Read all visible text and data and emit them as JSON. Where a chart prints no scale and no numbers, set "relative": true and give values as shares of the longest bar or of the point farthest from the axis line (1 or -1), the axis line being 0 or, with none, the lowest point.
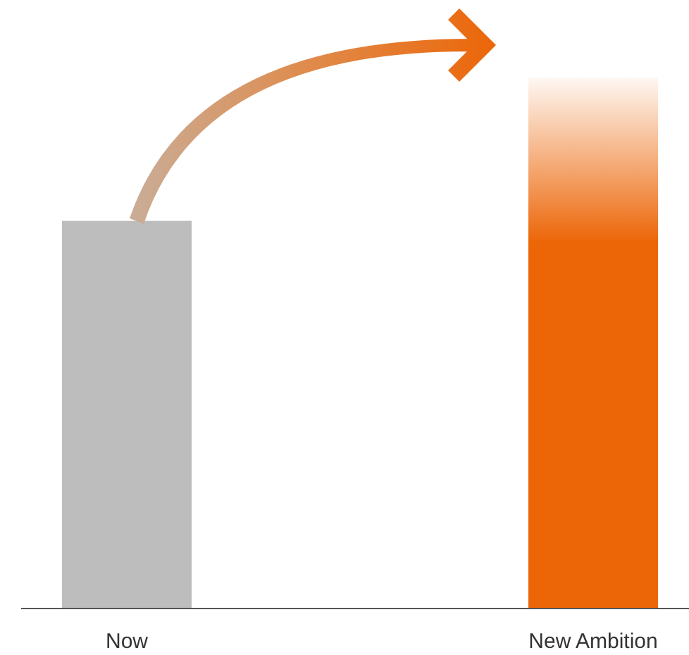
{
  "chart_data": {
    "type": "bar",
    "relative": true,
    "categories": [
      "Now",
      "New Ambition"
    ],
    "values": [
      0.73,
      1
    ],
    "colors": [
      "#bdbdbd",
      "#ec6608"
    ]
  }
}
